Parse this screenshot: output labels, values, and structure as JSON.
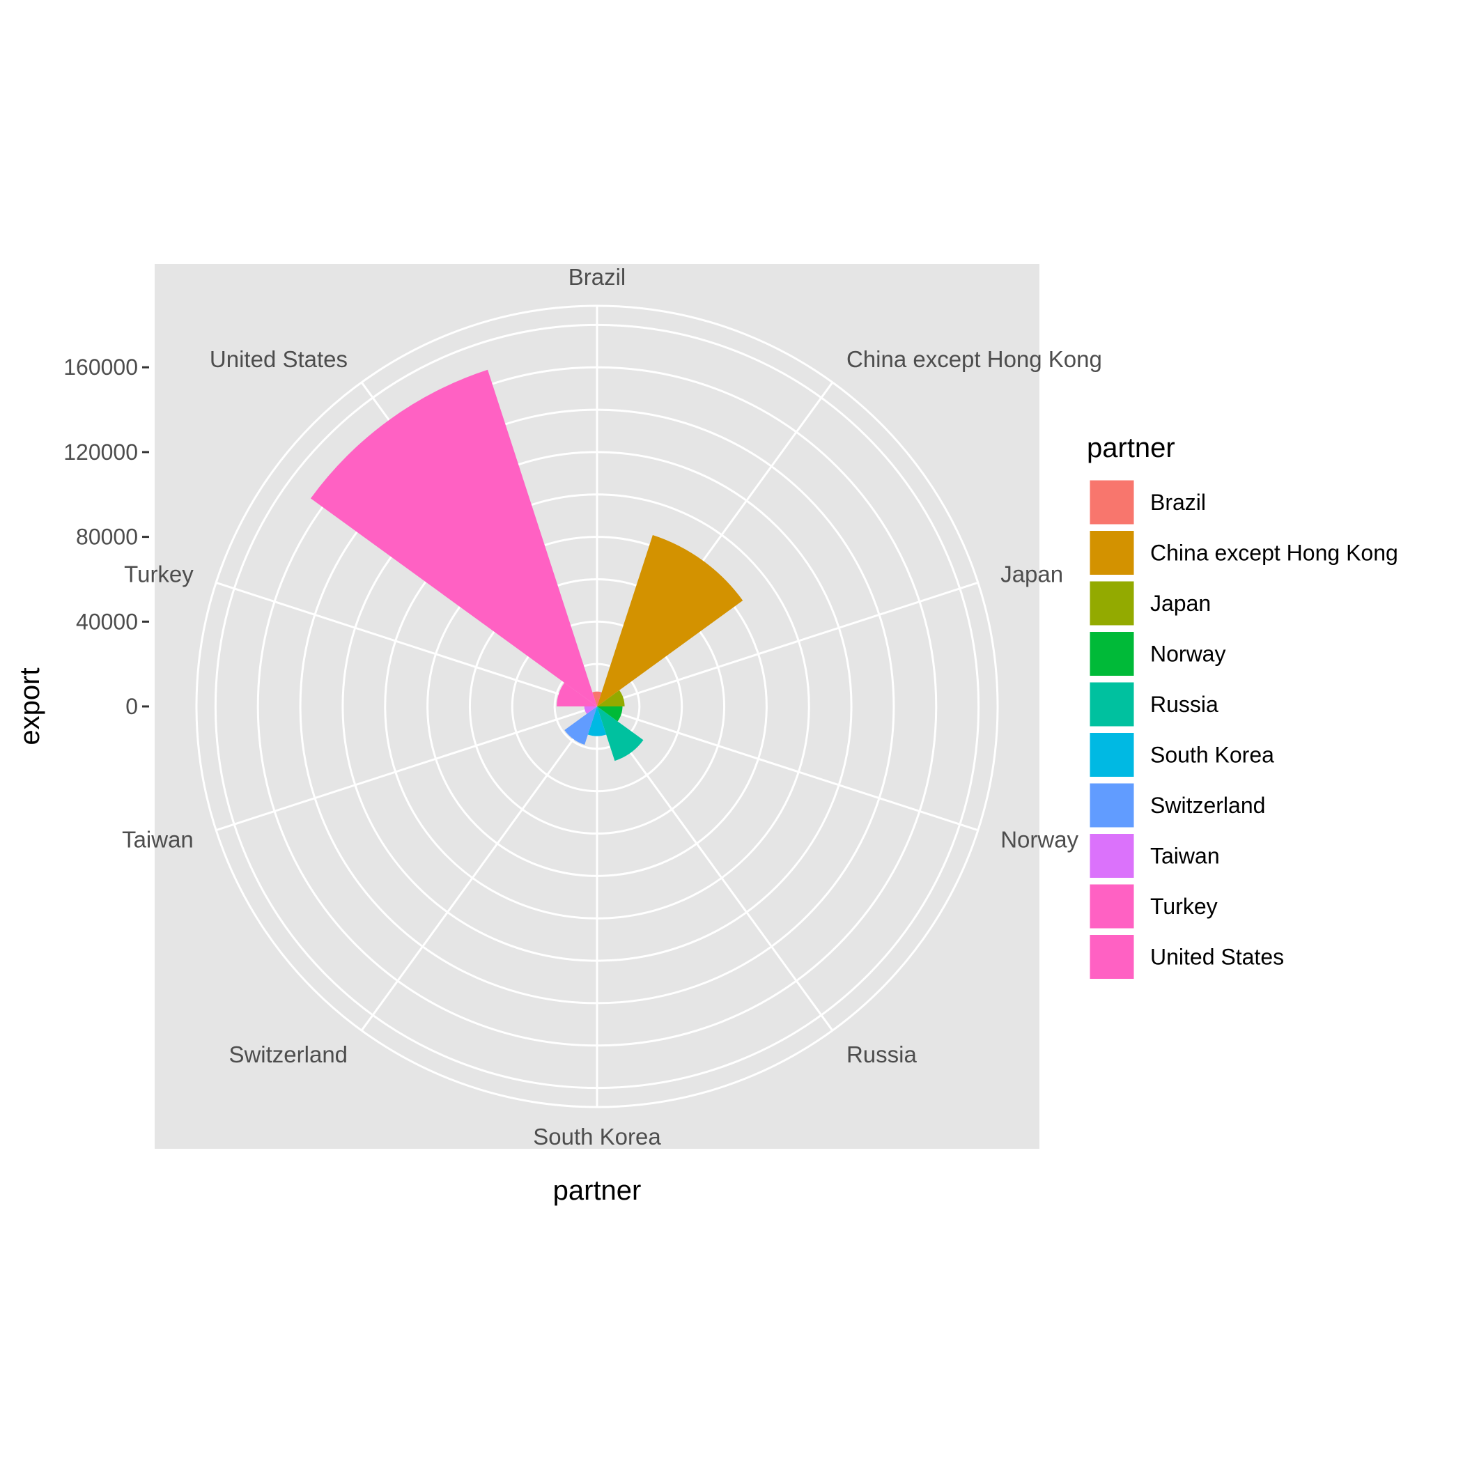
{
  "chart_data": {
    "type": "pie",
    "subtype": "polar-bar (coxcomb)",
    "title": "",
    "xlabel": "partner",
    "ylabel": "export",
    "categories": [
      "Brazil",
      "China except Hong Kong",
      "Japan",
      "Norway",
      "Russia",
      "South Korea",
      "Switzerland",
      "Taiwan",
      "Turkey",
      "United States"
    ],
    "angular_labels": [
      "Brazil",
      "China except Hong Kong",
      "Japan",
      "Norway",
      "Russia",
      "South Korea",
      "Switzerland",
      "Taiwan",
      "Turkey",
      "United States"
    ],
    "values": [
      7000,
      85000,
      13000,
      12000,
      27000,
      14000,
      19000,
      6000,
      19000,
      167000
    ],
    "colors": [
      "#F8766D",
      "#D39200",
      "#93AA00",
      "#00BA38",
      "#00C19F",
      "#00B9E3",
      "#619CFF",
      "#DB72FB",
      "#FF61C3",
      "#FF61C3"
    ],
    "y_ticks": [
      0,
      40000,
      80000,
      120000,
      160000
    ],
    "y_tick_labels": [
      "0",
      "40000",
      "80000",
      "120000",
      "160000"
    ],
    "ylim": [
      0,
      189000
    ],
    "grid": true,
    "legend": {
      "title": "partner",
      "position": "right",
      "entries": [
        "Brazil",
        "China except Hong Kong",
        "Japan",
        "Norway",
        "Russia",
        "South Korea",
        "Switzerland",
        "Taiwan",
        "Turkey",
        "United States"
      ]
    }
  },
  "colors": {
    "panel_background": "#E5E5E5",
    "grid": "#FFFFFF"
  }
}
